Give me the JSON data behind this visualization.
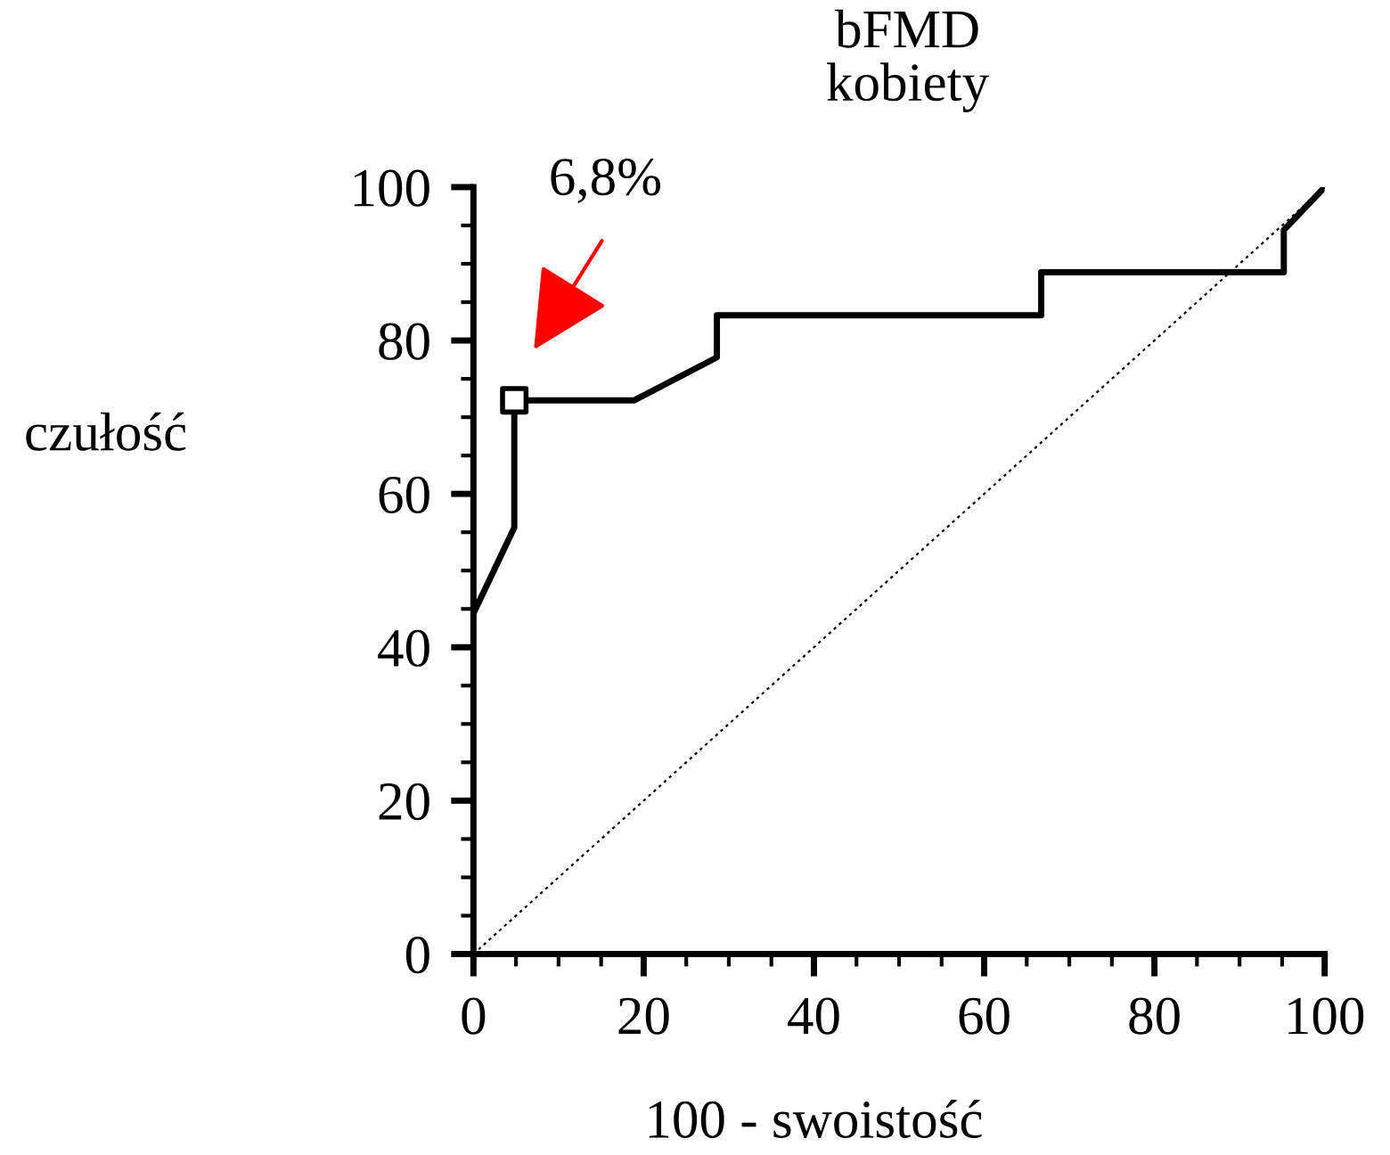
{
  "chart_data": {
    "type": "line",
    "title": "bFMD\nkobiety",
    "xlabel": "100 - swoistość",
    "ylabel": "czułość",
    "xlim": [
      0,
      100
    ],
    "ylim": [
      0,
      100
    ],
    "xticks": [
      0,
      20,
      40,
      60,
      80,
      100
    ],
    "yticks": [
      0,
      20,
      40,
      60,
      80,
      100
    ],
    "grid": false,
    "legend": false,
    "series": [
      {
        "color": "#000000",
        "line_style": "solid",
        "marker": "none",
        "x": [
          0,
          4.8,
          4.8,
          18.9,
          28.6,
          28.6,
          66.7,
          66.7,
          95.2,
          95.2,
          100
        ],
        "values": [
          44.4,
          55.6,
          72.2,
          72.2,
          77.8,
          83.3,
          83.3,
          88.9,
          88.9,
          94.4,
          100
        ]
      },
      {
        "type": "line",
        "color": "#000000",
        "line_style": "dotted",
        "marker": "none",
        "x": [
          0,
          100
        ],
        "values": [
          0,
          100
        ]
      },
      {
        "type": "scatter",
        "color": "#000000",
        "marker": "square",
        "x": [
          4.8
        ],
        "values": [
          72.2
        ]
      }
    ],
    "annotations": [
      "6,8%"
    ]
  }
}
